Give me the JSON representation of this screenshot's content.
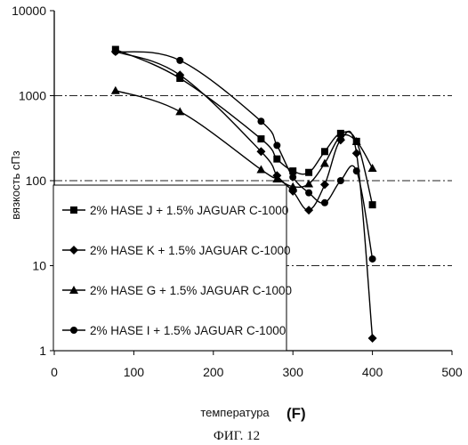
{
  "figure_caption": "ФИГ. 12",
  "chart_data": {
    "type": "line",
    "title": "",
    "xlabel": "температура",
    "xlabel_unit": "(F)",
    "ylabel": "вязкость сПз",
    "xlim": [
      0,
      500
    ],
    "ylim": [
      1,
      10000
    ],
    "y_scale": "log",
    "x_ticks": [
      "0",
      "100",
      "200",
      "300",
      "400",
      "500"
    ],
    "y_ticks": [
      "1",
      "10",
      "100",
      "1000",
      "10000"
    ],
    "grid": "dash-dot horizontal lines at 10, 100, 1000",
    "legend_position": "bottom-left",
    "series": [
      {
        "name": "2% HASE J + 1.5% JAGUAR C-1000",
        "marker": "square",
        "x": [
          77,
          158,
          260,
          280,
          300,
          320,
          340,
          360,
          380,
          400
        ],
        "y": [
          3500,
          1600,
          310,
          180,
          130,
          125,
          220,
          360,
          290,
          52
        ]
      },
      {
        "name": "2% HASE K + 1.5% JAGUAR C-1000",
        "marker": "diamond",
        "x": [
          77,
          158,
          260,
          280,
          300,
          320,
          340,
          360,
          380,
          400
        ],
        "y": [
          3300,
          1750,
          220,
          115,
          75,
          45,
          90,
          300,
          210,
          1.4
        ]
      },
      {
        "name": "2% HASE G + 1.5% JAGUAR C-1000",
        "marker": "triangle",
        "x": [
          77,
          158,
          260,
          280,
          300,
          320,
          340,
          360,
          380,
          400
        ],
        "y": [
          1150,
          650,
          135,
          105,
          85,
          92,
          160,
          330,
          290,
          140
        ]
      },
      {
        "name": "2% HASE  I + 1.5% JAGUAR C-1000",
        "marker": "circle",
        "x": [
          77,
          158,
          260,
          280,
          300,
          320,
          340,
          360,
          380,
          400
        ],
        "y": [
          3300,
          2600,
          500,
          260,
          110,
          72,
          55,
          100,
          130,
          12
        ]
      }
    ]
  }
}
